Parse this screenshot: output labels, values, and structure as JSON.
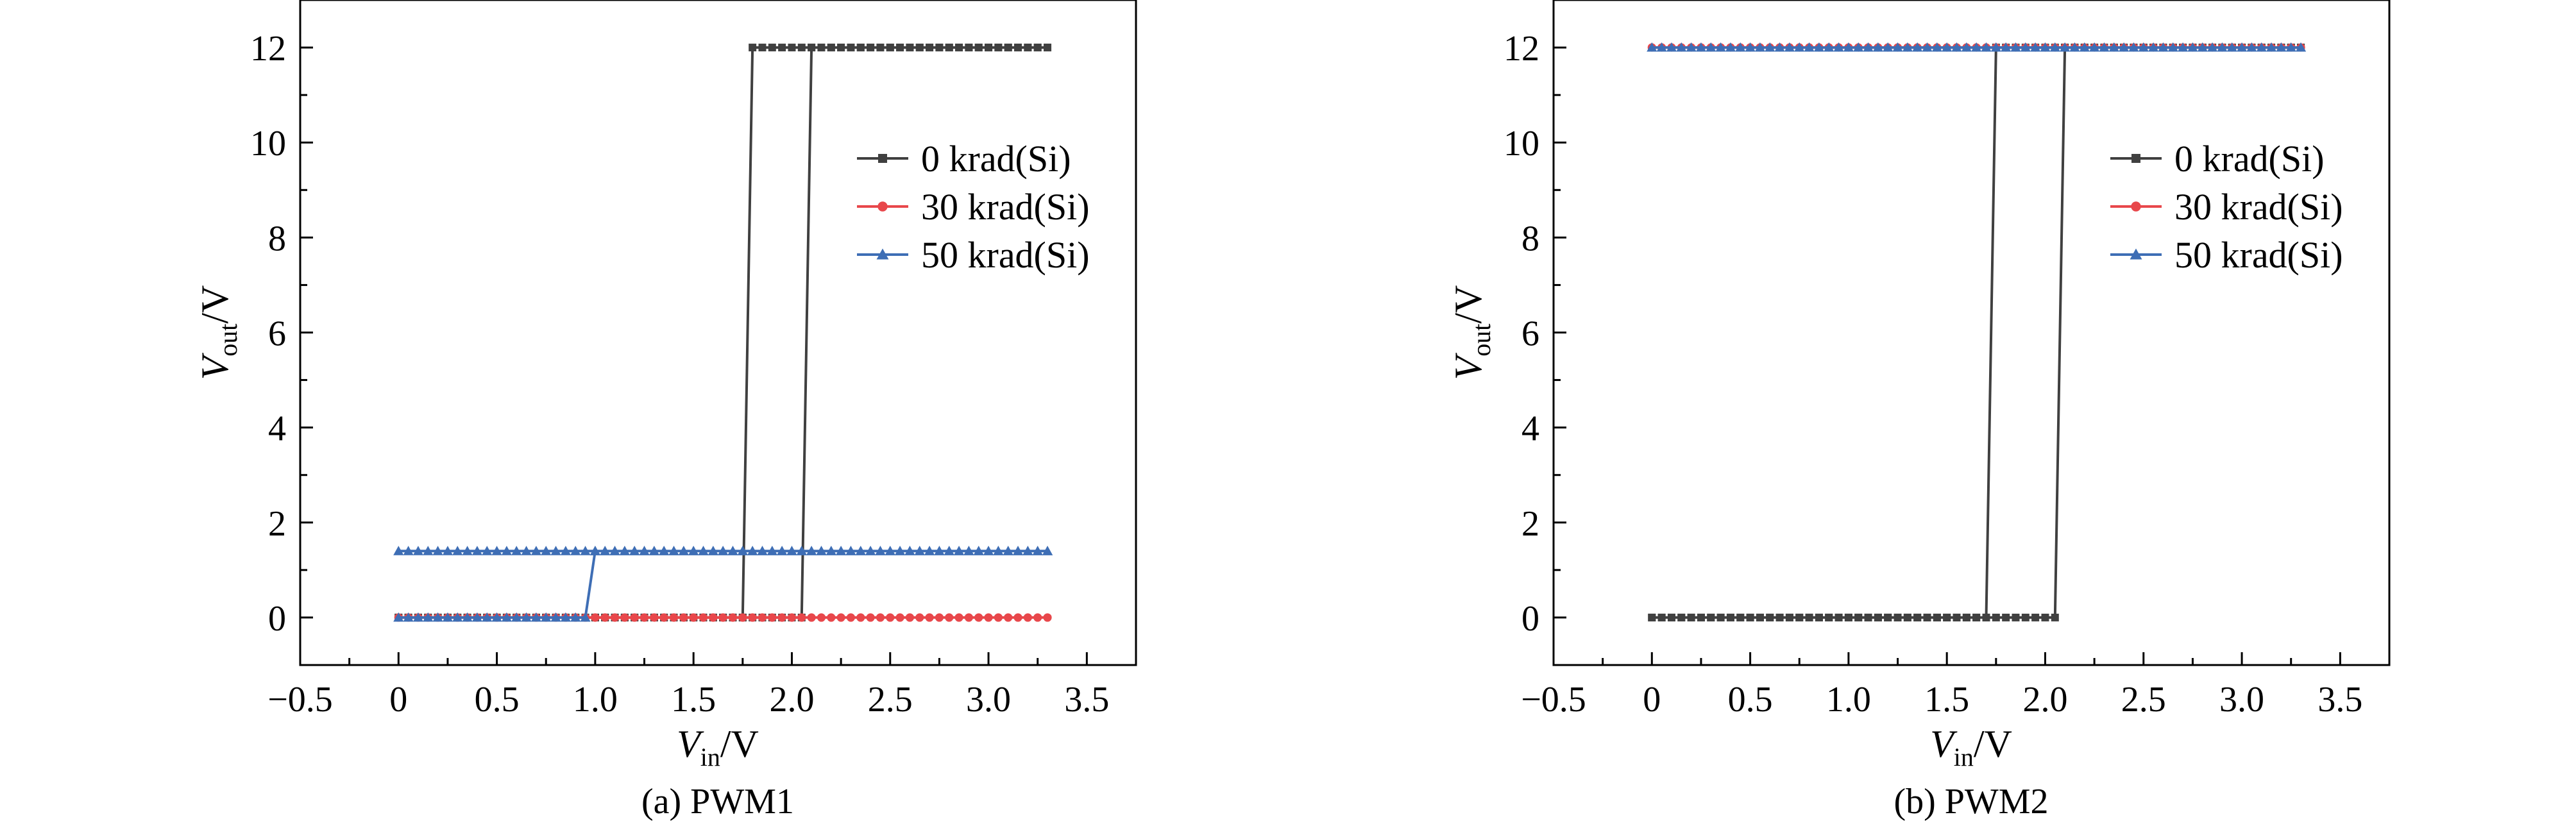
{
  "chart_data": [
    {
      "type": "line",
      "caption": "(a) PWM1",
      "xlabel_main": "V",
      "xlabel_sub": "in",
      "xlabel_unit": "/V",
      "ylabel_main": "V",
      "ylabel_sub": "out",
      "ylabel_unit": "/V",
      "xlim": [
        -0.5,
        3.75
      ],
      "ylim": [
        -1,
        13
      ],
      "xticks": [
        -0.5,
        0,
        0.5,
        1.0,
        1.5,
        2.0,
        2.5,
        3.0,
        3.5
      ],
      "xtick_labels": [
        "−0.5",
        "0",
        "0.5",
        "1.0",
        "1.5",
        "2.0",
        "2.5",
        "3.0",
        "3.5"
      ],
      "yticks": [
        0,
        2,
        4,
        6,
        8,
        10,
        12
      ],
      "ytick_labels": [
        "0",
        "2",
        "4",
        "6",
        "8",
        "10",
        "12"
      ],
      "legend_position": "upper-right",
      "series": [
        {
          "name": "0 krad(Si)",
          "color": "#404040",
          "marker": "square",
          "x": [
            0,
            1.75,
            1.8,
            3.3,
            2.1,
            2.05,
            0
          ],
          "y": [
            0,
            0,
            12,
            12,
            12,
            0,
            0
          ]
        },
        {
          "name": "30 krad(Si)",
          "color": "#e8474b",
          "marker": "circle",
          "x": [
            0,
            3.3
          ],
          "y": [
            0,
            0
          ]
        },
        {
          "name": "50 krad(Si)",
          "color": "#3e6eb5",
          "marker": "triangle",
          "x": [
            0,
            0.95,
            1.0,
            3.3,
            1.0,
            0
          ],
          "y": [
            0,
            0,
            1.4,
            1.4,
            1.4,
            1.4
          ]
        }
      ]
    },
    {
      "type": "line",
      "caption": "(b) PWM2",
      "xlabel_main": "V",
      "xlabel_sub": "in",
      "xlabel_unit": "/V",
      "ylabel_main": "V",
      "ylabel_sub": "out",
      "ylabel_unit": "/V",
      "xlim": [
        -0.5,
        3.75
      ],
      "ylim": [
        -1,
        13
      ],
      "xticks": [
        -0.5,
        0,
        0.5,
        1.0,
        1.5,
        2.0,
        2.5,
        3.0,
        3.5
      ],
      "xtick_labels": [
        "−0.5",
        "0",
        "0.5",
        "1.0",
        "1.5",
        "2.0",
        "2.5",
        "3.0",
        "3.5"
      ],
      "yticks": [
        0,
        2,
        4,
        6,
        8,
        10,
        12
      ],
      "ytick_labels": [
        "0",
        "2",
        "4",
        "6",
        "8",
        "10",
        "12"
      ],
      "legend_position": "upper-right",
      "series": [
        {
          "name": "0 krad(Si)",
          "color": "#404040",
          "marker": "square",
          "x": [
            0,
            1.7,
            1.75,
            3.3,
            2.1,
            2.05,
            0
          ],
          "y": [
            0,
            0,
            12,
            12,
            12,
            0,
            0
          ]
        },
        {
          "name": "30 krad(Si)",
          "color": "#e8474b",
          "marker": "circle",
          "x": [
            0,
            3.3
          ],
          "y": [
            12,
            12
          ]
        },
        {
          "name": "50 krad(Si)",
          "color": "#3e6eb5",
          "marker": "triangle",
          "x": [
            0,
            3.3
          ],
          "y": [
            12,
            12
          ]
        }
      ]
    }
  ]
}
